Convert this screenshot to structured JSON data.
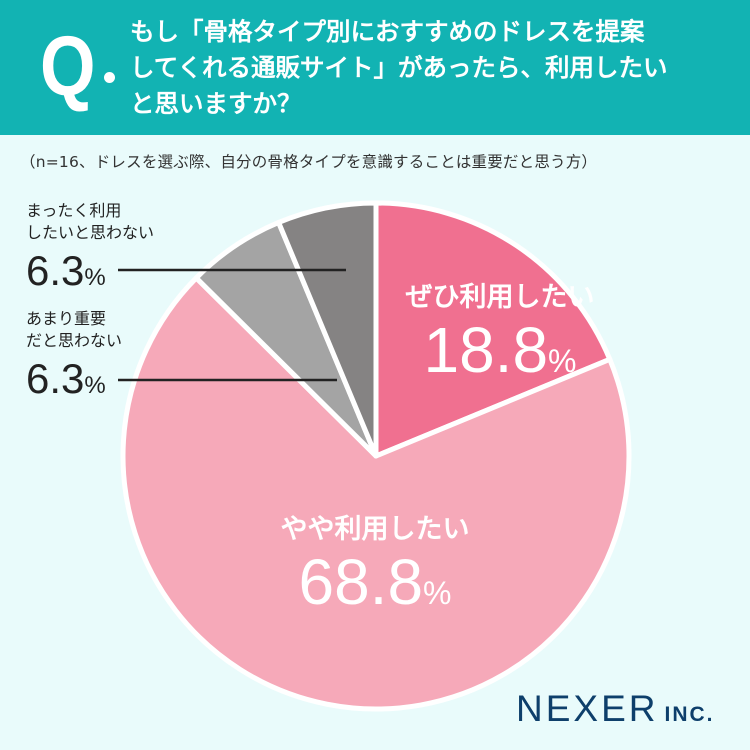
{
  "question": {
    "mark": "Q",
    "lines": [
      "もし「骨格タイプ別におすすめのドレスを提案",
      "してくれる通販サイト」があったら、利用したい",
      "と思いますか？"
    ]
  },
  "note": "（n=16、ドレスを選ぶ際、自分の骨格タイプを意識することは重要だと思う方）",
  "chart_data": {
    "type": "pie",
    "slices": [
      {
        "label": "ぜひ利用したい",
        "value": 18.8,
        "color": "#f07090"
      },
      {
        "label": "やや利用したい",
        "value": 68.8,
        "color": "#f6a9b9"
      },
      {
        "label": "あまり重要だと思わない",
        "value": 6.3,
        "color": "#a4a4a4"
      },
      {
        "label": "まったく利用したいと思わない",
        "value": 6.3,
        "color": "#858383"
      }
    ],
    "labels": {
      "s0": {
        "name": "ぜひ利用したい",
        "value": "18.8",
        "unit": "%"
      },
      "s1": {
        "name": "やや利用したい",
        "value": "68.8",
        "unit": "%"
      },
      "s2": {
        "name1": "あまり重要",
        "name2": "だと思わない",
        "value": "6.3",
        "unit": "%"
      },
      "s3": {
        "name1": "まったく利用",
        "name2": "したいと思わない",
        "value": "6.3",
        "unit": "%"
      }
    }
  },
  "logo": {
    "main": "NEXER",
    "suffix": "INC."
  }
}
